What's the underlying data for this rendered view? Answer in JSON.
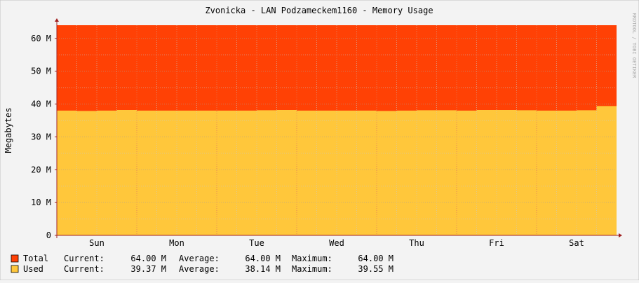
{
  "chart_data": {
    "type": "area",
    "title": "Zvonicka - LAN Podzameckem1160 - Memory Usage",
    "ylabel": "Megabytes",
    "watermark": "RRDTOOL / TOBI OETIKER",
    "ylim": [
      0,
      64
    ],
    "yticks": [
      0,
      10,
      20,
      30,
      40,
      50,
      60
    ],
    "ytick_labels": [
      "0",
      "10 M",
      "20 M",
      "30 M",
      "40 M",
      "50 M",
      "60 M"
    ],
    "xtick_labels": [
      "Sun",
      "Mon",
      "Tue",
      "Wed",
      "Thu",
      "Fri",
      "Sat"
    ],
    "grid": true,
    "colors": {
      "background": "#f3f3f3",
      "canvas": "#ffffff",
      "grid": "#c8c8c8",
      "major_grid": "#e0a0a0",
      "axis": "#a02020"
    },
    "x": [
      "Sun 00:00",
      "Sun 06:00",
      "Sun 12:00",
      "Sun 18:00",
      "Mon 00:00",
      "Mon 06:00",
      "Mon 12:00",
      "Mon 18:00",
      "Tue 00:00",
      "Tue 06:00",
      "Tue 12:00",
      "Tue 18:00",
      "Wed 00:00",
      "Wed 06:00",
      "Wed 12:00",
      "Wed 18:00",
      "Thu 00:00",
      "Thu 06:00",
      "Thu 12:00",
      "Thu 18:00",
      "Fri 00:00",
      "Fri 06:00",
      "Fri 12:00",
      "Fri 18:00",
      "Sat 00:00",
      "Sat 06:00",
      "Sat 12:00",
      "Sat 18:00",
      "Sun 00:00"
    ],
    "series": [
      {
        "name": "Total",
        "color": "#ff4105",
        "values": [
          64,
          64,
          64,
          64,
          64,
          64,
          64,
          64,
          64,
          64,
          64,
          64,
          64,
          64,
          64,
          64,
          64,
          64,
          64,
          64,
          64,
          64,
          64,
          64,
          64,
          64,
          64,
          64,
          64
        ]
      },
      {
        "name": "Used",
        "color": "#ffc73b",
        "values": [
          38.0,
          37.9,
          38.0,
          38.2,
          38.0,
          38.0,
          38.0,
          38.0,
          38.0,
          38.0,
          38.1,
          38.2,
          38.0,
          38.0,
          38.0,
          38.0,
          37.9,
          38.0,
          38.1,
          38.1,
          38.0,
          38.2,
          38.2,
          38.1,
          38.0,
          38.0,
          38.1,
          39.4,
          39.4
        ]
      }
    ],
    "legend": [
      {
        "name": "Total",
        "current": "64.00 M",
        "average": "64.00 M",
        "maximum": "64.00 M"
      },
      {
        "name": "Used",
        "current": "39.37 M",
        "average": "38.14 M",
        "maximum": "39.55 M"
      }
    ],
    "legend_labels": {
      "current": "Current:",
      "average": "Average:",
      "maximum": "Maximum:"
    }
  }
}
